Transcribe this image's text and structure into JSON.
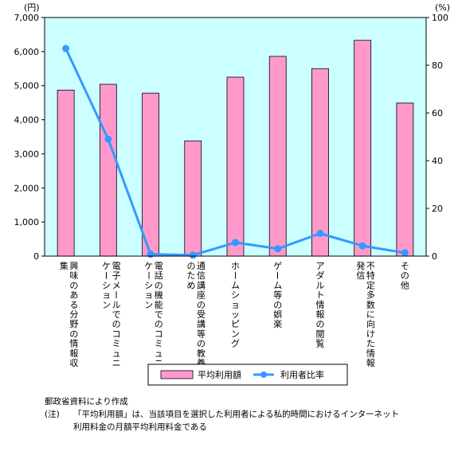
{
  "chart_data": {
    "type": "bar",
    "categories": [
      "興味のある分野の情報収集",
      "電子メールでのコミュニケーション",
      "電話の機能でのコミュニケーション",
      "通信講座の受講等の教養のため",
      "ホームショッピング",
      "ゲーム等の娯楽",
      "アダルト情報の閲覧",
      "不特定多数に向けた情報発信",
      "その他"
    ],
    "series": [
      {
        "name": "平均利用額",
        "type": "bar",
        "axis": "left",
        "color": "#ff99cc",
        "values": [
          4870,
          5040,
          4780,
          3380,
          5250,
          5860,
          5500,
          6330,
          4490
        ]
      },
      {
        "name": "利用者比率",
        "type": "line",
        "axis": "right",
        "color": "#3399ff",
        "values": [
          87,
          49,
          0.8,
          0.4,
          5.7,
          3.1,
          9.5,
          4.3,
          1.4
        ]
      }
    ],
    "y_left": {
      "unit": "(円)",
      "min": 0,
      "max": 7000,
      "ticks": [
        "0",
        "1,000",
        "2,000",
        "3,000",
        "4,000",
        "5,000",
        "6,000",
        "7,000"
      ]
    },
    "y_right": {
      "unit": "(%)",
      "min": 0,
      "max": 100,
      "ticks": [
        "0",
        "20",
        "40",
        "60",
        "80",
        "100"
      ]
    },
    "plot_background": "#ccffff",
    "grid": false,
    "legend_position": "bottom"
  },
  "notes": {
    "source": "郵政省資料により作成",
    "note_label": "(注)",
    "note_line1": "「平均利用額」は、当該項目を選択した利用者による私的時間におけるインターネット",
    "note_line2": "利用料金の月額平均利用料金である"
  }
}
